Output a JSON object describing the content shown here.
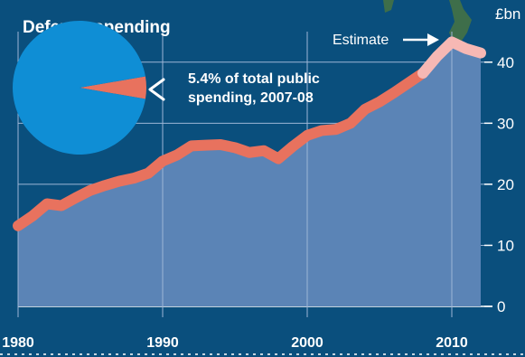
{
  "chart_data": [
    {
      "type": "area",
      "ylabel": "£bn",
      "x_ticks": [
        "1980",
        "1990",
        "2000",
        "2010"
      ],
      "y_ticks": [
        0,
        10,
        20,
        30,
        40
      ],
      "xlim": [
        1980,
        2012
      ],
      "ylim": [
        0,
        45
      ],
      "grid": true,
      "annotation": "Estimate",
      "series": [
        {
          "values": [
            {
              "x": 1980,
              "y": 13.2
            },
            {
              "x": 1981,
              "y": 14.8
            },
            {
              "x": 1982,
              "y": 16.8
            },
            {
              "x": 1983,
              "y": 16.5
            },
            {
              "x": 1984,
              "y": 17.8
            },
            {
              "x": 1985,
              "y": 19.0
            },
            {
              "x": 1986,
              "y": 19.8
            },
            {
              "x": 1987,
              "y": 20.5
            },
            {
              "x": 1988,
              "y": 21.0
            },
            {
              "x": 1989,
              "y": 21.8
            },
            {
              "x": 1990,
              "y": 23.8
            },
            {
              "x": 1991,
              "y": 24.8
            },
            {
              "x": 1992,
              "y": 26.3
            },
            {
              "x": 1993,
              "y": 26.4
            },
            {
              "x": 1994,
              "y": 26.5
            },
            {
              "x": 1995,
              "y": 26.0
            },
            {
              "x": 1996,
              "y": 25.2
            },
            {
              "x": 1997,
              "y": 25.5
            },
            {
              "x": 1998,
              "y": 24.2
            },
            {
              "x": 1999,
              "y": 26.2
            },
            {
              "x": 2000,
              "y": 28.0
            },
            {
              "x": 2001,
              "y": 28.8
            },
            {
              "x": 2002,
              "y": 29.0
            },
            {
              "x": 2003,
              "y": 30.0
            },
            {
              "x": 2004,
              "y": 32.3
            },
            {
              "x": 2005,
              "y": 33.5
            },
            {
              "x": 2006,
              "y": 35.0
            },
            {
              "x": 2007,
              "y": 36.6
            },
            {
              "x": 2008,
              "y": 38.2
            }
          ],
          "estimate": [
            {
              "x": 2008,
              "y": 38.2
            },
            {
              "x": 2009,
              "y": 41.0
            },
            {
              "x": 2010,
              "y": 43.3
            },
            {
              "x": 2011,
              "y": 42.2
            },
            {
              "x": 2012,
              "y": 41.5
            }
          ]
        }
      ]
    },
    {
      "type": "pie",
      "title": "Defence spending",
      "slices": [
        {
          "label": "5.4% of total public spending, 2007-08",
          "value": 5.4
        },
        {
          "label": "",
          "value": 94.6
        }
      ]
    }
  ],
  "pie_label_lines": [
    "5.4% of total public",
    "spending, 2007-08"
  ],
  "colors": {
    "background": "#0a4f7d",
    "area": "#5b84b6",
    "line": "#e8725e",
    "estimate_line": "#f7b8b4",
    "pie_main": "#0f8ed5",
    "pie_slice": "#e8725e",
    "grid": "#9db6d6"
  }
}
